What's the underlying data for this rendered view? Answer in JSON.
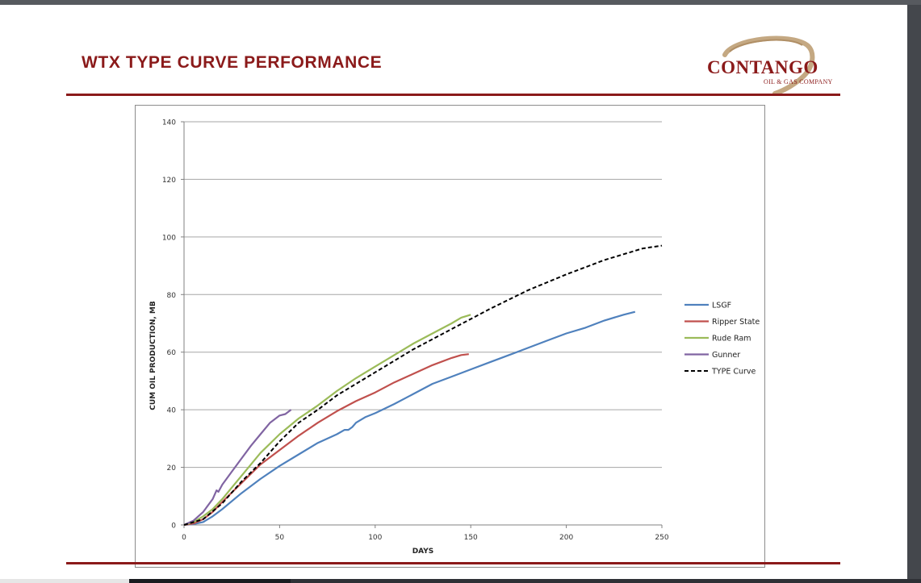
{
  "slide": {
    "title": "WTX TYPE CURVE PERFORMANCE",
    "logo_text": "CONTANGO",
    "logo_subtext": "OIL & GAS COMPANY",
    "accent_color": "#8b1a1a"
  },
  "chart_data": {
    "type": "line",
    "title": "",
    "xlabel": "DAYS",
    "ylabel": "CUM OIL PRODUCTION, MB",
    "xlim": [
      0,
      250
    ],
    "ylim": [
      0,
      140
    ],
    "x_ticks": [
      0,
      50,
      100,
      150,
      200,
      250
    ],
    "y_ticks": [
      0,
      20,
      40,
      60,
      80,
      100,
      120,
      140
    ],
    "grid": "horizontal",
    "legend_position": "right",
    "series": [
      {
        "name": "LSGF",
        "color": "#4f81bd",
        "dashed": false,
        "x": [
          0,
          5,
          10,
          15,
          20,
          30,
          40,
          50,
          60,
          70,
          80,
          84,
          86,
          88,
          90,
          95,
          100,
          110,
          120,
          130,
          140,
          150,
          160,
          170,
          180,
          190,
          200,
          210,
          220,
          230,
          236
        ],
        "y": [
          0,
          0.3,
          1,
          3,
          5.5,
          11,
          16,
          20.5,
          24.5,
          28.5,
          31.5,
          33,
          33,
          34,
          35.5,
          37.5,
          38.8,
          42,
          45.5,
          49,
          51.5,
          54,
          56.5,
          59,
          61.5,
          64,
          66.5,
          68.5,
          71,
          73,
          74
        ]
      },
      {
        "name": "Ripper State",
        "color": "#c0504d",
        "dashed": false,
        "x": [
          0,
          5,
          10,
          15,
          20,
          30,
          40,
          50,
          60,
          70,
          80,
          90,
          100,
          110,
          120,
          130,
          140,
          145,
          149
        ],
        "y": [
          0,
          0.5,
          2,
          4.5,
          8,
          14.5,
          21,
          26,
          31,
          35.5,
          39.5,
          43,
          46,
          49.5,
          52.5,
          55.5,
          58,
          59,
          59.3
        ]
      },
      {
        "name": "Rude Ram",
        "color": "#9bbb59",
        "dashed": false,
        "x": [
          0,
          5,
          10,
          15,
          20,
          30,
          40,
          50,
          60,
          70,
          80,
          90,
          100,
          110,
          120,
          130,
          140,
          145,
          150
        ],
        "y": [
          0,
          1,
          3,
          5.5,
          9,
          17,
          25,
          31.5,
          37,
          41.5,
          46.5,
          51,
          55,
          59,
          63,
          66.5,
          70,
          72,
          73
        ]
      },
      {
        "name": "Gunner",
        "color": "#8064a2",
        "dashed": false,
        "x": [
          0,
          5,
          10,
          15,
          17,
          18,
          20,
          25,
          30,
          35,
          40,
          45,
          50,
          53,
          56
        ],
        "y": [
          0,
          1.5,
          4.5,
          9,
          12,
          11.5,
          14,
          18.5,
          23,
          27.5,
          31.5,
          35.5,
          38,
          38.5,
          40
        ]
      },
      {
        "name": "TYPE Curve",
        "color": "#000000",
        "dashed": true,
        "x": [
          0,
          10,
          20,
          30,
          40,
          50,
          60,
          70,
          80,
          100,
          120,
          140,
          160,
          180,
          200,
          220,
          240,
          250
        ],
        "y": [
          0,
          2,
          7.5,
          15,
          21.5,
          29,
          35.5,
          40,
          45,
          53,
          61,
          68,
          75,
          81.5,
          87,
          92,
          96,
          97
        ]
      }
    ]
  }
}
